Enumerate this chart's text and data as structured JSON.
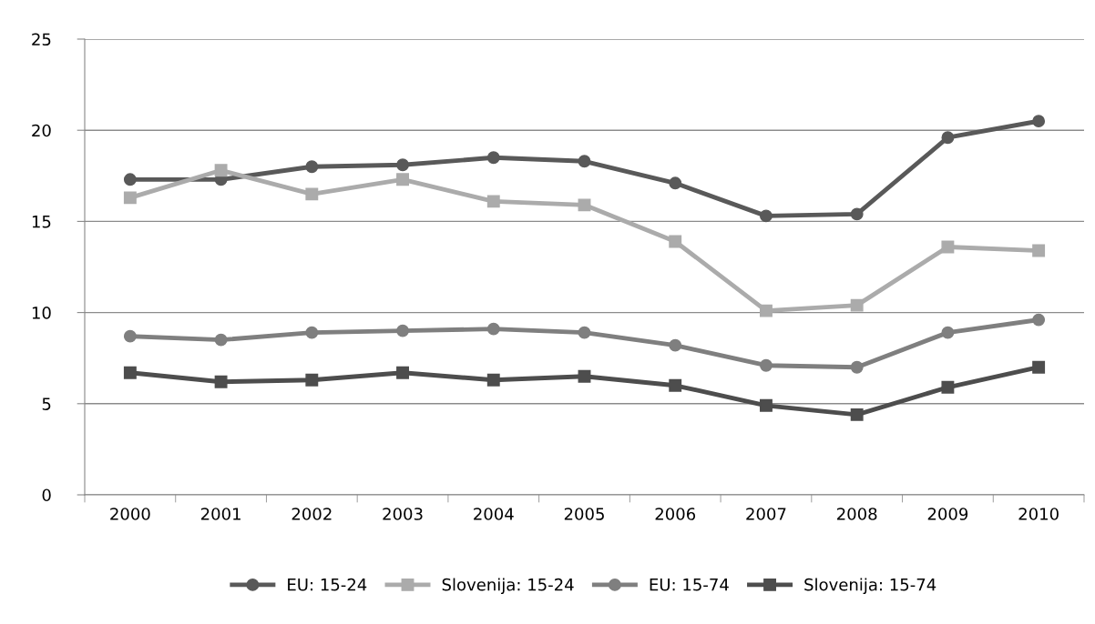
{
  "chart_data": {
    "type": "line",
    "categories": [
      "2000",
      "2001",
      "2002",
      "2003",
      "2004",
      "2005",
      "2006",
      "2007",
      "2008",
      "2009",
      "2010"
    ],
    "series": [
      {
        "name": "EU: 15-24",
        "color": "#595959",
        "marker": "circle",
        "values": [
          17.3,
          17.3,
          18.0,
          18.1,
          18.5,
          18.3,
          17.1,
          15.3,
          15.4,
          19.6,
          20.5
        ]
      },
      {
        "name": "Slovenija: 15-24",
        "color": "#ababab",
        "marker": "square",
        "values": [
          16.3,
          17.8,
          16.5,
          17.3,
          16.1,
          15.9,
          13.9,
          10.1,
          10.4,
          13.6,
          13.4
        ]
      },
      {
        "name": "EU: 15-74",
        "color": "#7f7f7f",
        "marker": "circle",
        "values": [
          8.7,
          8.5,
          8.9,
          9.0,
          9.1,
          8.9,
          8.2,
          7.1,
          7.0,
          8.9,
          9.6
        ]
      },
      {
        "name": "Slovenija: 15-74",
        "color": "#4d4d4d",
        "marker": "square",
        "values": [
          6.7,
          6.2,
          6.3,
          6.7,
          6.3,
          6.5,
          6.0,
          4.9,
          4.4,
          5.9,
          7.0
        ]
      }
    ],
    "ylim": [
      0,
      25
    ],
    "yticks": [
      0,
      5,
      10,
      15,
      20,
      25
    ],
    "grid": "y",
    "legend": "bottom"
  }
}
